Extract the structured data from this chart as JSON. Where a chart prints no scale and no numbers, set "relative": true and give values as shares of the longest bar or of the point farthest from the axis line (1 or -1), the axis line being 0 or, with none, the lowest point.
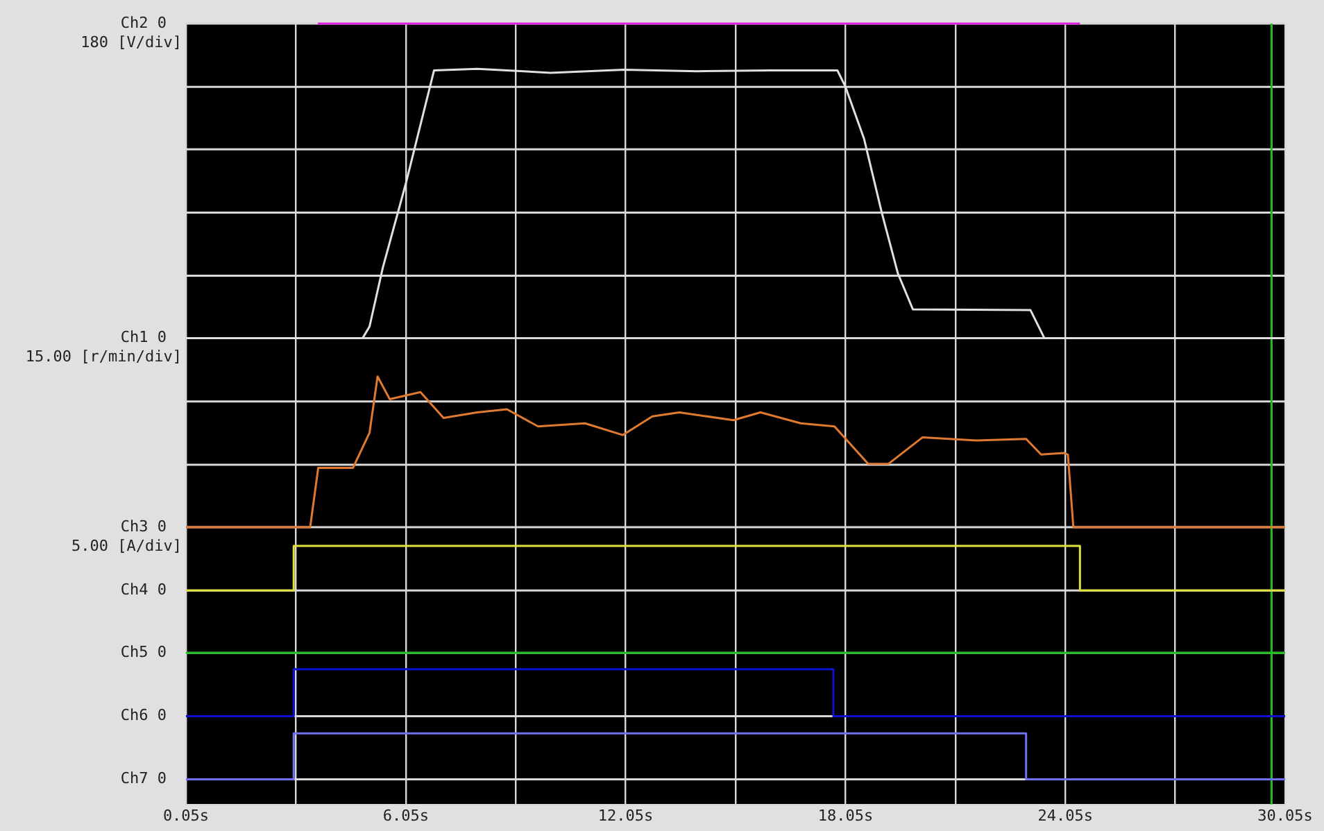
{
  "chart_data": {
    "type": "line",
    "relative": true,
    "xlim": [
      0.05,
      30.05
    ],
    "xticks": [
      {
        "value": 0.05,
        "label": "0.05s"
      },
      {
        "value": 3.05,
        "label": null
      },
      {
        "value": 6.05,
        "label": "6.05s"
      },
      {
        "value": 9.05,
        "label": null
      },
      {
        "value": 12.05,
        "label": "12.05s"
      },
      {
        "value": 15.05,
        "label": null
      },
      {
        "value": 18.05,
        "label": "18.05s"
      },
      {
        "value": 21.05,
        "label": null
      },
      {
        "value": 24.05,
        "label": "24.05s"
      },
      {
        "value": 27.05,
        "label": null
      },
      {
        "value": 30.05,
        "label": "30.05s"
      }
    ],
    "grid": "x",
    "legend": false,
    "marker": "none",
    "line_style": "solid",
    "ref_lines": [
      {
        "axis": "y",
        "value": 1.0,
        "label": "Ch2 0",
        "color": "#d8d8d8"
      },
      {
        "axis": "y",
        "value": 0.919,
        "label": null,
        "color": "#d8d8d8"
      },
      {
        "axis": "y",
        "value": 0.839,
        "label": null,
        "color": "#d8d8d8"
      },
      {
        "axis": "y",
        "value": 0.758,
        "label": null,
        "color": "#d8d8d8"
      },
      {
        "axis": "y",
        "value": 0.677,
        "label": null,
        "color": "#d8d8d8"
      },
      {
        "axis": "y",
        "value": 0.597,
        "label": "Ch1 0",
        "color": "#d8d8d8"
      },
      {
        "axis": "y",
        "value": 0.516,
        "label": null,
        "color": "#d8d8d8"
      },
      {
        "axis": "y",
        "value": 0.435,
        "label": null,
        "color": "#d8d8d8"
      },
      {
        "axis": "y",
        "value": 0.355,
        "label": "Ch3 0",
        "color": "#d8d8d8"
      },
      {
        "axis": "y",
        "value": 0.274,
        "label": "Ch4 0",
        "color": "#d8d8d8"
      },
      {
        "axis": "y",
        "value": 0.194,
        "label": "Ch5 0",
        "color": "#d8d8d8"
      },
      {
        "axis": "y",
        "value": 0.113,
        "label": "Ch6 0",
        "color": "#d8d8d8"
      },
      {
        "axis": "y",
        "value": 0.032,
        "label": "Ch7 0",
        "color": "#d8d8d8"
      },
      {
        "axis": "x",
        "value": 29.68,
        "label": null,
        "color": "#20c020"
      }
    ],
    "annotations": [
      "180 [V/div]",
      "15.00 [r/min/div]",
      "5.00 [A/div]"
    ],
    "series": [
      {
        "color": "#e0e0e0",
        "x": [
          0.05,
          4.87,
          5.06,
          5.42,
          6.05,
          6.82,
          8.0,
          10.0,
          12.0,
          14.0,
          16.0,
          17.83,
          18.05,
          18.56,
          19.04,
          19.48,
          19.89,
          23.1,
          23.48,
          30.05
        ],
        "values": [
          0.597,
          0.597,
          0.612,
          0.687,
          0.795,
          0.94,
          0.942,
          0.937,
          0.941,
          0.939,
          0.94,
          0.94,
          0.919,
          0.852,
          0.758,
          0.68,
          0.634,
          0.633,
          0.597,
          0.597
        ]
      },
      {
        "color": "#e07a30",
        "x": [
          0.05,
          3.44,
          3.66,
          4.61,
          5.06,
          5.28,
          5.61,
          6.45,
          7.08,
          8.0,
          8.81,
          9.66,
          10.94,
          11.97,
          12.78,
          13.52,
          14.99,
          15.73,
          16.83,
          17.75,
          18.67,
          19.22,
          20.15,
          21.62,
          22.98,
          23.39,
          24.01,
          24.12,
          24.27,
          30.05
        ],
        "values": [
          0.355,
          0.355,
          0.431,
          0.431,
          0.476,
          0.548,
          0.519,
          0.528,
          0.495,
          0.502,
          0.506,
          0.484,
          0.488,
          0.473,
          0.497,
          0.502,
          0.492,
          0.502,
          0.488,
          0.484,
          0.436,
          0.436,
          0.47,
          0.466,
          0.468,
          0.448,
          0.45,
          0.448,
          0.355,
          0.355
        ]
      },
      {
        "color": "#e0e040",
        "x": [
          0.05,
          2.99,
          2.99,
          24.45,
          24.45,
          30.05
        ],
        "values": [
          0.274,
          0.274,
          0.331,
          0.331,
          0.274,
          0.274
        ]
      },
      {
        "color": "#20c020",
        "x": [
          0.05,
          30.05
        ],
        "values": [
          0.194,
          0.194
        ]
      },
      {
        "color": "#1010d0",
        "x": [
          0.05,
          2.99,
          2.99,
          17.72,
          17.72,
          30.05
        ],
        "values": [
          0.113,
          0.113,
          0.173,
          0.173,
          0.113,
          0.113
        ]
      },
      {
        "color": "#7070f0",
        "x": [
          0.05,
          2.99,
          2.99,
          22.98,
          22.98,
          30.05
        ],
        "values": [
          0.032,
          0.032,
          0.091,
          0.091,
          0.032,
          0.032
        ]
      },
      {
        "color": "#e020e0",
        "x": [
          3.65,
          24.45
        ],
        "values": [
          1.0,
          1.0
        ]
      }
    ]
  }
}
